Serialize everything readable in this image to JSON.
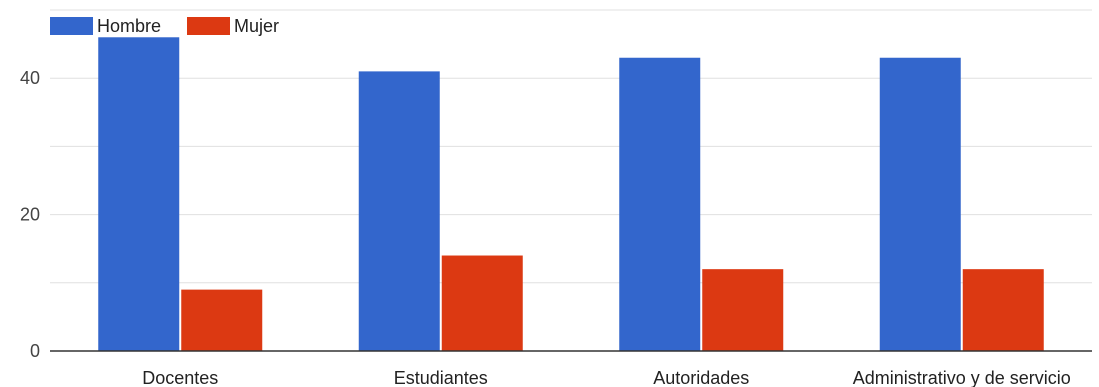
{
  "chart_data": {
    "type": "bar",
    "categories": [
      "Docentes",
      "Estudiantes",
      "Autoridades",
      "Administrativo y de servicio"
    ],
    "series": [
      {
        "name": "Hombre",
        "values": [
          46,
          41,
          43,
          43
        ],
        "color": "#3366cc"
      },
      {
        "name": "Mujer",
        "values": [
          9,
          14,
          12,
          12
        ],
        "color": "#dc3912"
      }
    ],
    "ylim": [
      0,
      50
    ],
    "yticks": [
      0,
      20,
      40
    ],
    "grid": true,
    "legend_position": "top-left"
  }
}
